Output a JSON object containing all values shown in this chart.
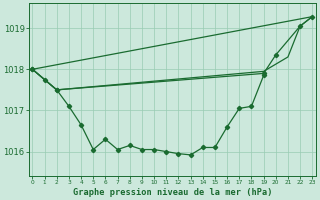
{
  "background_color": "#cce8dc",
  "grid_color": "#99ccb3",
  "line_color": "#1a6b30",
  "title": "Graphe pression niveau de la mer (hPa)",
  "ylim": [
    1015.4,
    1019.6
  ],
  "yticks": [
    1016,
    1017,
    1018,
    1019
  ],
  "xlim": [
    -0.3,
    23.3
  ],
  "line1_x": [
    0,
    1,
    2,
    3,
    4,
    5,
    6,
    7,
    8,
    9,
    10,
    11,
    12,
    13,
    14,
    15,
    16,
    17,
    18,
    19
  ],
  "line1_y": [
    1018.0,
    1017.75,
    1017.5,
    1017.1,
    1016.65,
    1016.05,
    1016.3,
    1016.05,
    1016.15,
    1016.05,
    1016.05,
    1016.0,
    1015.95,
    1015.92,
    1016.1,
    1016.1,
    1016.6,
    1017.05,
    1017.1,
    1017.85
  ],
  "line2_x": [
    0,
    23
  ],
  "line2_y": [
    1018.0,
    1019.28
  ],
  "line3_x": [
    0,
    2,
    19,
    20,
    22,
    23
  ],
  "line3_y": [
    1018.0,
    1017.5,
    1017.9,
    1018.35,
    1019.05,
    1019.28
  ],
  "line4_x": [
    0,
    2,
    19,
    21,
    22,
    23
  ],
  "line4_y": [
    1018.0,
    1017.5,
    1017.95,
    1018.3,
    1019.05,
    1019.28
  ]
}
